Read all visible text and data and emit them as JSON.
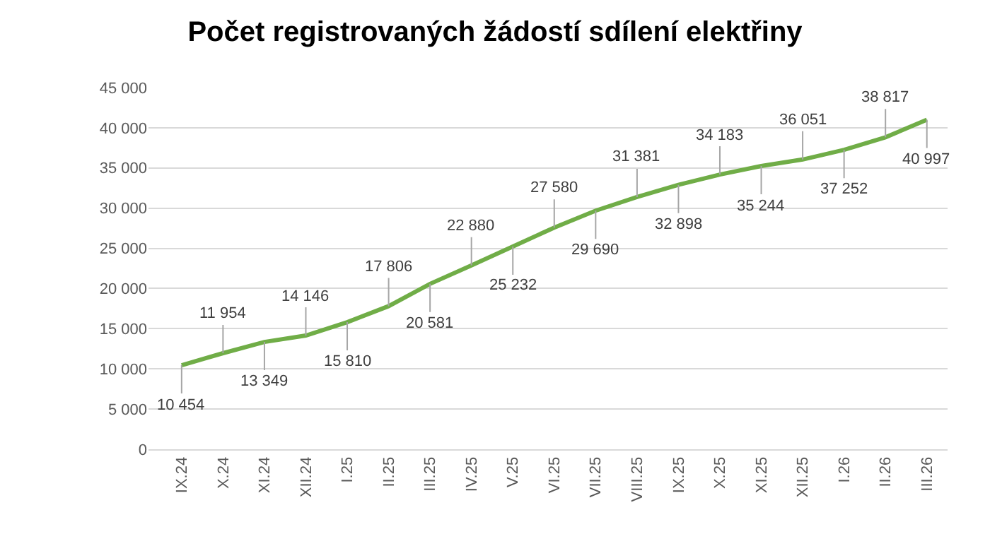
{
  "chart_data": {
    "type": "line",
    "title": "Počet registrovaných žádostí sdílení elektřiny",
    "categories": [
      "IX.24",
      "X.24",
      "XI.24",
      "XII.24",
      "I.25",
      "II.25",
      "III.25",
      "IV.25",
      "V.25",
      "VI.25",
      "VII.25",
      "VIII.25",
      "IX.25",
      "X.25",
      "XI.25",
      "XII.25",
      "I.26",
      "II.26",
      "III.26"
    ],
    "series": [
      {
        "color": "#70ad47",
        "values": [
          10454,
          11954,
          13349,
          14146,
          15810,
          17806,
          20581,
          22880,
          25232,
          27580,
          29690,
          31381,
          32898,
          34183,
          35244,
          36051,
          37252,
          38817,
          40997
        ],
        "value_labels": [
          "10 454",
          "11 954",
          "13 349",
          "14 146",
          "15 810",
          "17 806",
          "20 581",
          "22 880",
          "25 232",
          "27 580",
          "29 690",
          "31 381",
          "32 898",
          "34 183",
          "35 244",
          "36 051",
          "37 252",
          "38 817",
          "40 997"
        ]
      }
    ],
    "ylim": [
      0,
      45000
    ],
    "yticks": [
      {
        "value": 0,
        "label": "0"
      },
      {
        "value": 5000,
        "label": "5 000"
      },
      {
        "value": 10000,
        "label": "10 000"
      },
      {
        "value": 15000,
        "label": "15 000"
      },
      {
        "value": 20000,
        "label": "20 000"
      },
      {
        "value": 25000,
        "label": "25 000"
      },
      {
        "value": 30000,
        "label": "30 000"
      },
      {
        "value": 35000,
        "label": "35 000"
      },
      {
        "value": 40000,
        "label": "40 000"
      },
      {
        "value": 45000,
        "label": "45 000"
      }
    ],
    "grid": "y",
    "marker": "none",
    "line_style": "solid"
  }
}
